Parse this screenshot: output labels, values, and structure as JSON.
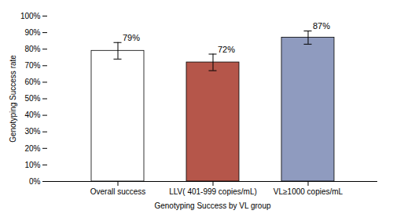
{
  "chart_data": {
    "type": "bar",
    "xlabel": "Genotyping Success by VL group",
    "ylabel": "Genotyping Success rate",
    "categories": [
      "Overall success",
      "LLV( 401-999 copies/mL)",
      "VL≥1000 copies/mL"
    ],
    "values": [
      0.79,
      0.72,
      0.87
    ],
    "errors": [
      0.05,
      0.05,
      0.04
    ],
    "value_labels": [
      "79%",
      "72%",
      "87%"
    ],
    "data_labels": true,
    "colors": [
      "white",
      "#b5564a",
      "#8f9bbf"
    ],
    "ylim": [
      0,
      1.0
    ],
    "yticks": [
      {
        "value": 0.0,
        "label": "0%"
      },
      {
        "value": 0.1,
        "label": "10%"
      },
      {
        "value": 0.2,
        "label": "20%"
      },
      {
        "value": 0.3,
        "label": "30%"
      },
      {
        "value": 0.4,
        "label": "40%"
      },
      {
        "value": 0.5,
        "label": "50%"
      },
      {
        "value": 0.6,
        "label": "60%"
      },
      {
        "value": 0.7,
        "label": "70%"
      },
      {
        "value": 0.8,
        "label": "80%"
      },
      {
        "value": 0.9,
        "label": "90%"
      },
      {
        "value": 1.0,
        "label": "100%"
      }
    ],
    "grid": false
  }
}
